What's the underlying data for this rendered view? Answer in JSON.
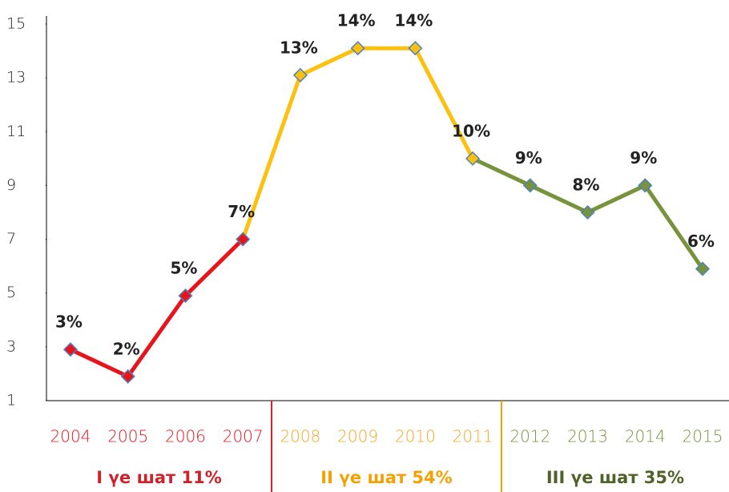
{
  "chart_data": {
    "type": "line",
    "categories": [
      "2004",
      "2005",
      "2006",
      "2007",
      "2008",
      "2009",
      "2010",
      "2011",
      "2012",
      "2013",
      "2014",
      "2015"
    ],
    "ylim": [
      1,
      15
    ],
    "yticks": [
      1,
      3,
      5,
      7,
      9,
      11,
      13,
      15
    ],
    "series": [
      {
        "name": "І үе шат 11%",
        "color": "#e8141b",
        "label_color": "#d0202a",
        "values": [
          2.9,
          1.9,
          4.9,
          7,
          null,
          null,
          null,
          null,
          null,
          null,
          null,
          null
        ],
        "value_labels": [
          "3%",
          "2%",
          "5%",
          "7%",
          null,
          null,
          null,
          null,
          null,
          null,
          null,
          null
        ]
      },
      {
        "name": "ІІ үе шат 54%",
        "color": "#fcc00f",
        "label_color": "#f5a000",
        "values": [
          null,
          null,
          null,
          null,
          13.1,
          14.1,
          14.1,
          10,
          null,
          null,
          null,
          null
        ],
        "value_labels": [
          null,
          null,
          null,
          null,
          "13%",
          "14%",
          "14%",
          "10%",
          null,
          null,
          null,
          null
        ]
      },
      {
        "name": "ІІІ үе шат 35%",
        "color": "#77933c",
        "label_color": "#4f6228",
        "values": [
          null,
          null,
          null,
          null,
          null,
          null,
          null,
          null,
          9,
          8,
          9,
          5.9
        ],
        "value_labels": [
          null,
          null,
          null,
          null,
          null,
          null,
          null,
          null,
          "9%",
          "8%",
          "9%",
          "6%"
        ]
      }
    ]
  }
}
